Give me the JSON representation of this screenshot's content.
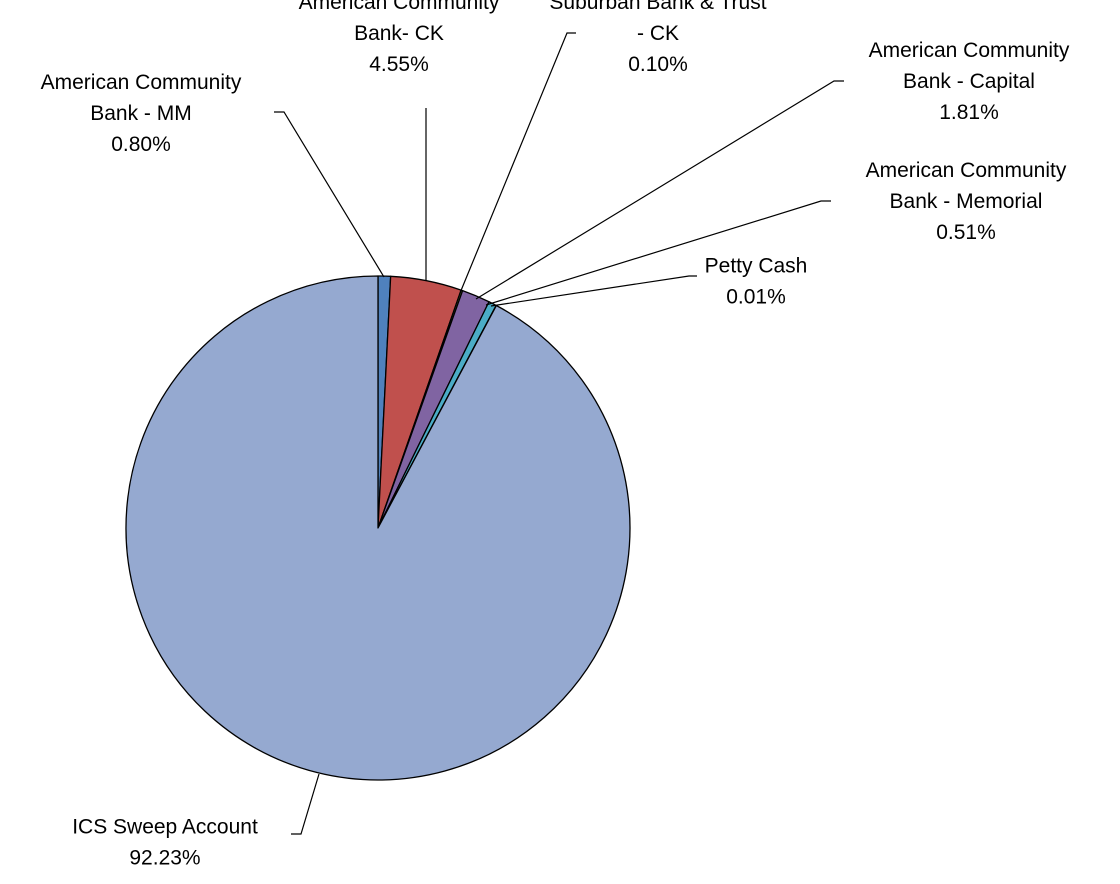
{
  "chart_data": {
    "type": "pie",
    "title": "",
    "start_angle_deg": 0,
    "direction": "clockwise",
    "legend": "none",
    "slices": [
      {
        "name_lines": [
          "American Community",
          "Bank - MM"
        ],
        "value": 0.8,
        "label": "0.80%",
        "color": "#4f81bd"
      },
      {
        "name_lines": [
          "American Community",
          "Bank- CK"
        ],
        "value": 4.55,
        "label": "4.55%",
        "color": "#c0504d"
      },
      {
        "name_lines": [
          "Suburban Bank & Trust",
          "- CK"
        ],
        "value": 0.1,
        "label": "0.10%",
        "color": "#9bbb59"
      },
      {
        "name_lines": [
          "American Community",
          "Bank - Capital"
        ],
        "value": 1.81,
        "label": "1.81%",
        "color": "#8064a2"
      },
      {
        "name_lines": [
          "American Community",
          "Bank - Memorial"
        ],
        "value": 0.51,
        "label": "0.51%",
        "color": "#4bacc6"
      },
      {
        "name_lines": [
          "Petty Cash"
        ],
        "value": 0.01,
        "label": "0.01%",
        "color": "#f79646"
      },
      {
        "name_lines": [
          "ICS Sweep Account"
        ],
        "value": 92.23,
        "label": "92.23%",
        "color": "#95a9d0"
      }
    ]
  }
}
